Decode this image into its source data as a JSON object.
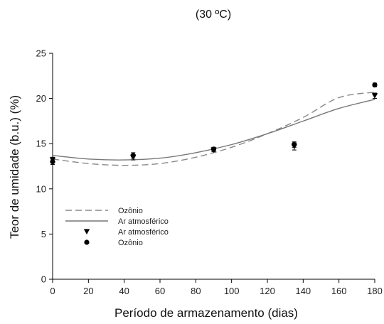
{
  "chart_data": {
    "type": "scatter",
    "title": "(30 ºC)",
    "xlabel": "Período de armazenamento (dias)",
    "ylabel": "Teor de umidade (b.u.) (%)",
    "xlim": [
      0,
      180
    ],
    "ylim": [
      0,
      25
    ],
    "x_ticks": [
      0,
      20,
      40,
      60,
      80,
      100,
      120,
      140,
      160,
      180
    ],
    "y_ticks": [
      0,
      5,
      10,
      15,
      20,
      25
    ],
    "grid": false,
    "legend_position": "lower-left",
    "series": [
      {
        "name": "Ozônio",
        "kind": "fit-line",
        "style": "dashed",
        "color": "#888888",
        "x": [
          0,
          20,
          40,
          60,
          80,
          100,
          120,
          140,
          160,
          180
        ],
        "y": [
          13.3,
          12.8,
          12.6,
          12.8,
          13.5,
          14.6,
          16.1,
          17.9,
          20.1,
          20.7
        ]
      },
      {
        "name": "Ar atmosférico",
        "kind": "fit-line",
        "style": "solid",
        "color": "#777777",
        "x": [
          0,
          20,
          40,
          60,
          80,
          100,
          120,
          140,
          160,
          180
        ],
        "y": [
          13.7,
          13.3,
          13.2,
          13.4,
          14.0,
          14.9,
          16.1,
          17.5,
          18.9,
          19.9
        ]
      },
      {
        "name": "Ar atmosférico",
        "kind": "points",
        "marker": "triangle-down",
        "color": "#000000",
        "x": [
          0,
          45,
          90,
          135,
          180
        ],
        "y": [
          13.2,
          13.5,
          14.3,
          14.7,
          20.3
        ],
        "err": [
          0.3,
          0.3,
          0.2,
          0.4,
          0.3
        ]
      },
      {
        "name": "Ozônio",
        "kind": "points",
        "marker": "circle",
        "color": "#000000",
        "x": [
          0,
          45,
          90,
          135,
          180
        ],
        "y": [
          13.0,
          13.7,
          14.4,
          14.9,
          21.5
        ],
        "err": [
          0.3,
          0.3,
          0.2,
          0.3,
          0.2
        ]
      }
    ]
  }
}
